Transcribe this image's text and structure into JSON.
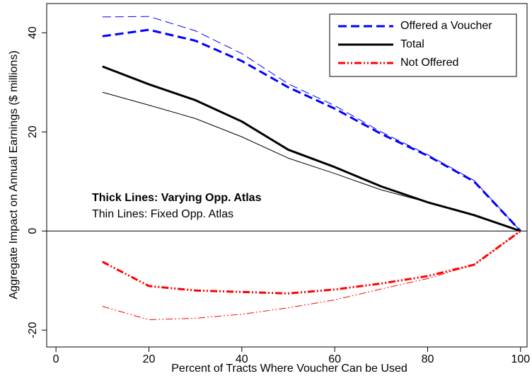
{
  "chart_data": {
    "type": "line",
    "x_label": "Percent of Tracts Where Voucher Can be Used",
    "y_label": "Aggregate Impact on Annual Earnings ($ millions)",
    "annotations": [
      "Thick Lines: Varying Opp. Atlas",
      "Thin Lines: Fixed Opp. Atlas"
    ],
    "x": [
      10,
      20,
      30,
      40,
      50,
      60,
      70,
      80,
      90,
      100
    ],
    "series": [
      {
        "name": "Offered a Voucher",
        "color": "#0000ff",
        "dash": "dashed",
        "values": [
          39.3,
          40.6,
          38.4,
          34.3,
          29.0,
          24.7,
          19.6,
          15.2,
          10.0,
          0
        ],
        "thin_values": [
          43.2,
          43.3,
          40.4,
          35.8,
          29.7,
          25.3,
          20.0,
          15.4,
          10.2,
          0
        ]
      },
      {
        "name": "Total",
        "color": "#000000",
        "dash": "solid",
        "values": [
          33.2,
          29.6,
          26.4,
          22.1,
          16.4,
          12.9,
          9.0,
          5.8,
          3.2,
          0
        ],
        "thin_values": [
          28.0,
          25.4,
          22.7,
          19.0,
          14.7,
          11.6,
          8.3,
          5.8,
          3.2,
          0
        ]
      },
      {
        "name": "Not Offered",
        "color": "#ff0000",
        "dash": "dashdot",
        "values": [
          -6.2,
          -11.1,
          -12.0,
          -12.3,
          -12.6,
          -11.8,
          -10.6,
          -9.1,
          -6.8,
          0
        ],
        "thin_values": [
          -15.2,
          -17.9,
          -17.6,
          -16.8,
          -15.5,
          -13.9,
          -11.7,
          -9.6,
          -6.8,
          0
        ]
      }
    ],
    "xlim": [
      -2,
      101.4
    ],
    "ylim": [
      -23.4,
      45.9
    ],
    "xticks": [
      0,
      20,
      40,
      60,
      80,
      100
    ],
    "yticks": [
      -20,
      0,
      20,
      40
    ],
    "reference_line": 0,
    "legend": "top-right"
  }
}
